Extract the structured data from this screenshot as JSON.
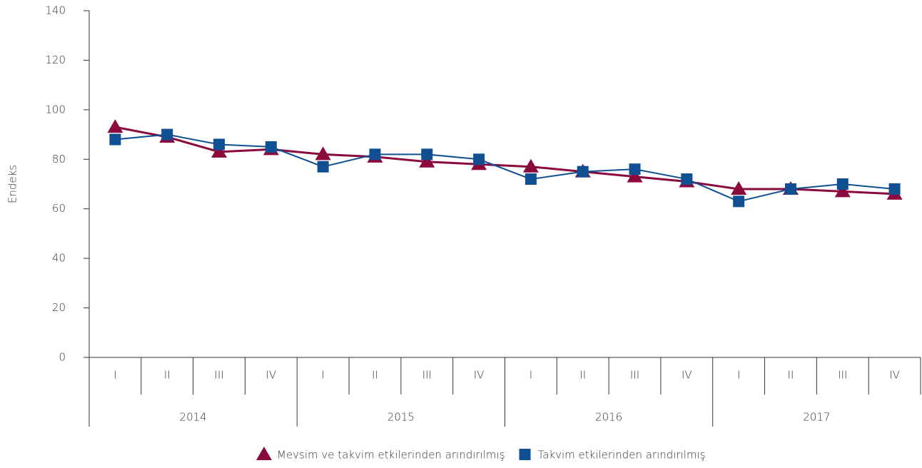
{
  "chart_data": {
    "type": "line",
    "y_label": "Endeks",
    "categories": [
      "I",
      "II",
      "III",
      "IV",
      "I",
      "II",
      "III",
      "IV",
      "I",
      "II",
      "III",
      "IV",
      "I",
      "II",
      "III",
      "IV"
    ],
    "groups": [
      "2014",
      "2015",
      "2016",
      "2017"
    ],
    "series": [
      {
        "name": "Mevsim ve takvim etkilerinden arındırılmış",
        "color": "#8b0a3d",
        "marker": "triangle",
        "values": [
          93,
          89,
          83,
          84,
          82,
          81,
          79,
          78,
          77,
          75,
          73,
          71,
          68,
          68,
          67,
          66
        ]
      },
      {
        "name": "Takvim etkilerinden arındırılmış",
        "color": "#0f4f92",
        "marker": "square",
        "values": [
          88,
          90,
          86,
          85,
          77,
          82,
          82,
          80,
          72,
          75,
          76,
          72,
          63,
          68,
          70,
          68
        ]
      }
    ],
    "ylim": [
      0,
      140
    ],
    "yticks": [
      0,
      20,
      40,
      60,
      80,
      100,
      120,
      140
    ],
    "grid": false
  }
}
